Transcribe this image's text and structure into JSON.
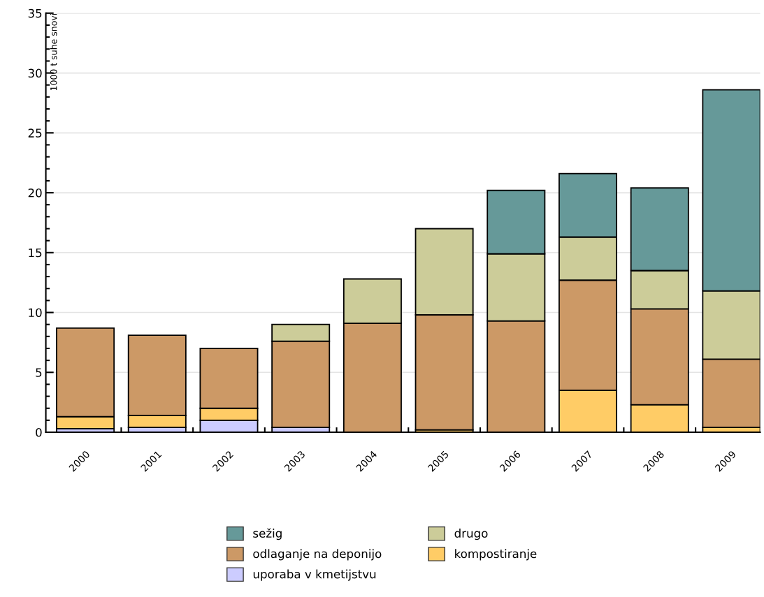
{
  "chart_data": {
    "type": "bar",
    "stacked": true,
    "ylabel": "1000 t suhe snovi",
    "categories": [
      "2000",
      "2001",
      "2002",
      "2003",
      "2004",
      "2005",
      "2006",
      "2007",
      "2008",
      "2009"
    ],
    "series": [
      {
        "name": "uporaba v kmetijstvu",
        "color": "#ccccff",
        "values": [
          0.3,
          0.4,
          1.0,
          0.4,
          0,
          0,
          0,
          0,
          0,
          0
        ]
      },
      {
        "name": "kompostiranje",
        "color": "#ffcc66",
        "values": [
          1.0,
          1.0,
          1.0,
          0,
          null,
          0.2,
          0,
          3.5,
          2.3,
          0.4
        ]
      },
      {
        "name": "odlaganje na deponijo",
        "color": "#cc9966",
        "values": [
          7.4,
          6.7,
          5.0,
          7.2,
          9.1,
          9.6,
          9.3,
          9.2,
          8.0,
          5.7
        ]
      },
      {
        "name": "drugo",
        "color": "#cccc99",
        "values": [
          0,
          0,
          0,
          1.4,
          3.7,
          7.2,
          5.6,
          3.6,
          3.2,
          5.7
        ]
      },
      {
        "name": "sežig",
        "color": "#669999",
        "values": [
          0,
          0,
          0,
          0,
          0,
          0,
          5.3,
          5.3,
          6.9,
          16.8
        ]
      }
    ],
    "ylim": [
      0,
      35
    ],
    "yticks": [
      0,
      5,
      10,
      15,
      20,
      25,
      30,
      35
    ],
    "grid": "y",
    "legend": "bottom"
  }
}
